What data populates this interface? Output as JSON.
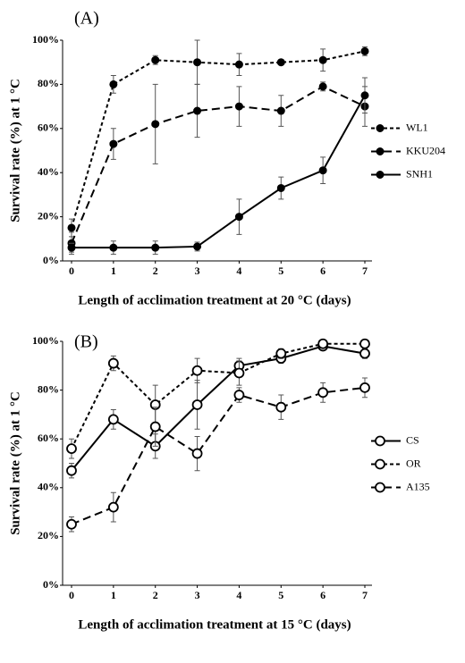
{
  "chart_data": [
    {
      "type": "line",
      "panel_label": "(A)",
      "ylabel": "Survival rate (%) at 1 °C",
      "xlabel": "Length of acclimation treatment at 20 °C (days)",
      "x": [
        0,
        1,
        2,
        3,
        4,
        5,
        6,
        7
      ],
      "xlim": [
        0,
        7
      ],
      "xticks": [
        0,
        1,
        2,
        3,
        4,
        5,
        6,
        7
      ],
      "ylim": [
        0,
        100
      ],
      "yticks": [
        {
          "value": 0,
          "label": "0%"
        },
        {
          "value": 20,
          "label": "20%"
        },
        {
          "value": 40,
          "label": "40%"
        },
        {
          "value": 60,
          "label": "60%"
        },
        {
          "value": 80,
          "label": "80%"
        },
        {
          "value": 100,
          "label": "100%"
        }
      ],
      "legend": "right",
      "series": [
        {
          "name": "WL1",
          "color": "#000000",
          "dash": "short",
          "marker": "filled",
          "values": [
            15,
            80,
            91,
            90,
            89,
            90,
            91,
            95
          ],
          "errors": [
            4,
            4,
            2,
            10,
            5,
            1,
            5,
            2
          ]
        },
        {
          "name": "KKU204",
          "color": "#000000",
          "dash": "long",
          "marker": "filled",
          "values": [
            8,
            53,
            62,
            68,
            70,
            68,
            79,
            70
          ],
          "errors": [
            5,
            7,
            18,
            12,
            9,
            7,
            2,
            9
          ]
        },
        {
          "name": "SNH1",
          "color": "#000000",
          "dash": "solid",
          "marker": "filled",
          "values": [
            6,
            6,
            6,
            6.5,
            20,
            33,
            41,
            75
          ],
          "errors": [
            2,
            3,
            3,
            2,
            8,
            5,
            6,
            8
          ]
        }
      ]
    },
    {
      "type": "line",
      "panel_label": "(B)",
      "ylabel": "Survival rate (%) at 1 °C",
      "xlabel": "Length of acclimation treatment at 15 °C (days)",
      "x": [
        0,
        1,
        2,
        3,
        4,
        5,
        6,
        7
      ],
      "xlim": [
        0,
        7
      ],
      "xticks": [
        0,
        1,
        2,
        3,
        4,
        5,
        6,
        7
      ],
      "ylim": [
        0,
        100
      ],
      "yticks": [
        {
          "value": 0,
          "label": "0%"
        },
        {
          "value": 20,
          "label": "20%"
        },
        {
          "value": 40,
          "label": "40%"
        },
        {
          "value": 60,
          "label": "60%"
        },
        {
          "value": 80,
          "label": "80%"
        },
        {
          "value": 100,
          "label": "100%"
        }
      ],
      "legend": "right",
      "series": [
        {
          "name": "CS",
          "color": "#000000",
          "dash": "solid",
          "marker": "open",
          "values": [
            47,
            68,
            57,
            74,
            90,
            93,
            98,
            95
          ],
          "errors": [
            3,
            4,
            5,
            10,
            3,
            2,
            1,
            2
          ]
        },
        {
          "name": "OR",
          "color": "#000000",
          "dash": "short",
          "marker": "open",
          "values": [
            56,
            91,
            74,
            88,
            87,
            95,
            99,
            99
          ],
          "errors": [
            4,
            3,
            8,
            5,
            5,
            2,
            1,
            1
          ]
        },
        {
          "name": "A135",
          "color": "#000000",
          "dash": "long",
          "marker": "open",
          "values": [
            25,
            32,
            65,
            54,
            78,
            73,
            79,
            81
          ],
          "errors": [
            3,
            6,
            8,
            7,
            3,
            5,
            4,
            4
          ]
        }
      ]
    }
  ]
}
